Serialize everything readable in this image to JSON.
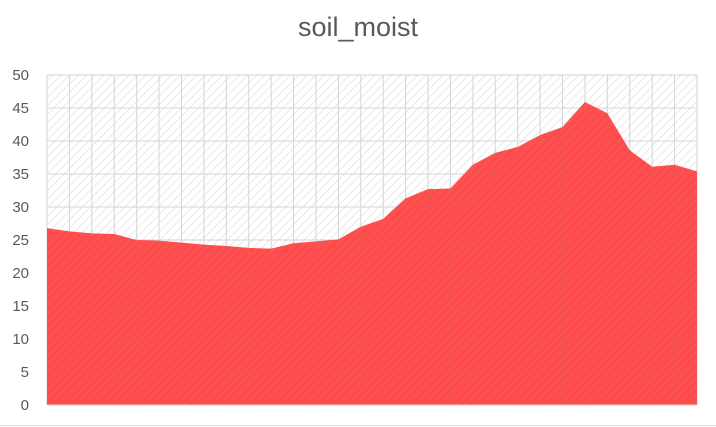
{
  "chart_data": {
    "type": "area",
    "title": "soil_moist",
    "xlabel": "",
    "ylabel": "",
    "ylim": [
      0,
      50
    ],
    "yticks": [
      0,
      5,
      10,
      15,
      20,
      25,
      30,
      35,
      40,
      45,
      50
    ],
    "grid": true,
    "legend": "none",
    "series": [
      {
        "name": "soil_moist",
        "color": "#ff5050",
        "values": [
          26.8,
          26.3,
          26.0,
          25.9,
          25.0,
          24.9,
          24.6,
          24.3,
          24.1,
          23.8,
          23.7,
          24.5,
          24.8,
          25.1,
          27.0,
          28.2,
          31.3,
          32.7,
          32.8,
          36.4,
          38.2,
          39.1,
          40.9,
          42.1,
          45.9,
          44.2,
          38.6,
          36.1,
          36.4,
          35.4
        ]
      }
    ]
  }
}
